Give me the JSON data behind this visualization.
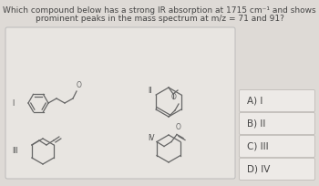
{
  "title_line1": "Which compound below has a strong IR absorption at 1715 cm⁻¹ and shows",
  "title_line2": "prominent peaks in the mass spectrum at m/z = 71 and 91?",
  "choices": [
    "A) I",
    "B) II",
    "C) III",
    "D) IV"
  ],
  "bg_color": "#dedad6",
  "box_bg": "#e8e5e1",
  "choice_bg": "#edeae7",
  "text_color": "#444444",
  "line_color": "#666666",
  "title_fontsize": 6.5,
  "choice_fontsize": 7.5
}
